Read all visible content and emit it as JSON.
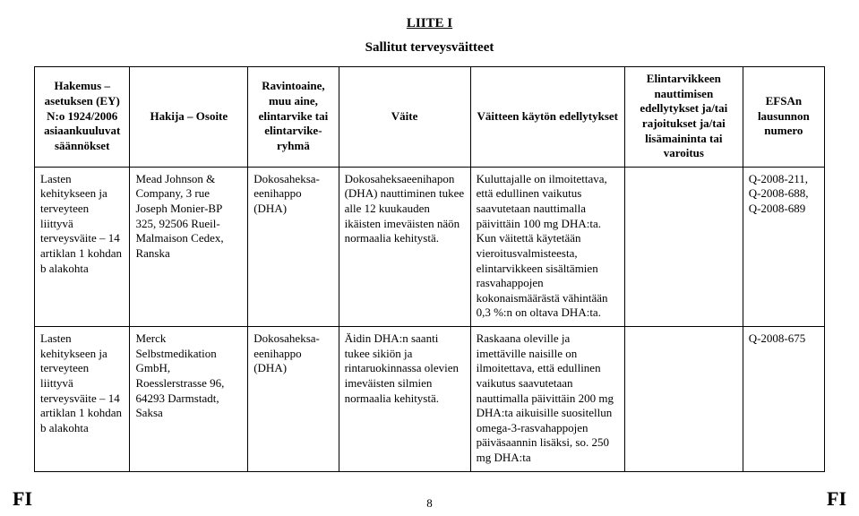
{
  "title": "LIITE I",
  "subtitle": "Sallitut terveysväitteet",
  "columns": [
    "Hakemus – asetuksen (EY) N:o 1924/2006 asiaankuuluvat säännökset",
    "Hakija – Osoite",
    "Ravintoaine, muu aine, elintarvike tai elintarvike­ryhmä",
    "Väite",
    "Väitteen käytön edellytykset",
    "Elintarvikkeen nauttimisen edellytykset ja/tai rajoitukset ja/tai lisämaininta tai varoitus",
    "EFSAn lausunnon numero"
  ],
  "rows": [
    {
      "c1": "Lasten kehitykseen ja terveyteen liittyvä terveysväite – 14 artiklan 1 kohdan b alakohta",
      "c2": "Mead Johnson & Company, 3 rue Joseph Monier-BP 325, 92506 Rueil-Malmaison Cedex, Ranska",
      "c3": "Dokosaheksa­eenihappo (DHA)",
      "c4": "Dokosaheksaeenihapon (DHA) nauttiminen tukee alle 12 kuukauden ikäisten imeväisten näön normaalia kehitystä.",
      "c5": "Kuluttajalle on ilmoitettava, että edullinen vaikutus saavutetaan nauttimalla päivittäin 100 mg DHA:ta. Kun väitettä käytetään vieroitusvalmisteesta, elintarvikkeen sisältämien rasvahappojen kokonaismäärästä vähintään 0,3 %:n on oltava DHA:ta.",
      "c6": "",
      "c7": "Q-2008-211, Q-2008-688, Q-2008-689"
    },
    {
      "c1": "Lasten kehitykseen ja terveyteen liittyvä terveysväite – 14 artiklan 1 kohdan b alakohta",
      "c2": "Merck Selbstmedikation GmbH, Roesslerstrasse 96, 64293 Darmstadt, Saksa",
      "c3": "Dokosaheksa­eenihappo (DHA)",
      "c4": "Äidin DHA:n saanti tukee sikiön ja rintaruokinnassa olevien imeväisten silmien normaalia kehitystä.",
      "c5": "Raskaana oleville ja imettäville naisille on ilmoitettava, että edullinen vaikutus saavutetaan nauttimalla päivittäin 200 mg DHA:ta aikuisille suositellun omega-3-rasvahappojen päiväsaannin lisäksi, so. 250 mg DHA:ta",
      "c6": "",
      "c7": "Q-2008-675"
    }
  ],
  "footer": {
    "left": "FI",
    "page": "8",
    "right": "FI"
  }
}
